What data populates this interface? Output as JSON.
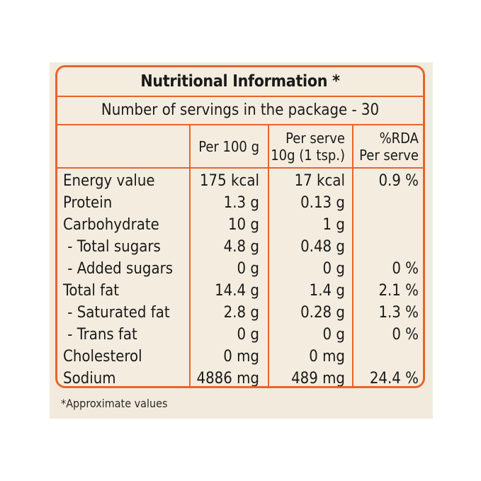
{
  "title": "Nutritional Information *",
  "servings": "Number of servings in the package - 30",
  "headers": {
    "per100": "Per 100 g",
    "perServeLine1": "Per serve",
    "perServeLine2": "10g (1 tsp.)",
    "rdaLine1": "%RDA",
    "rdaLine2": "Per serve"
  },
  "rows": [
    {
      "name": "Energy value",
      "per100": "175 kcal",
      "perServe": "17 kcal",
      "rda": "0.9 %"
    },
    {
      "name": "Protein",
      "per100": "1.3 g",
      "perServe": "0.13 g",
      "rda": ""
    },
    {
      "name": "Carbohydrate",
      "per100": "10 g",
      "perServe": "1 g",
      "rda": ""
    },
    {
      "name": " - Total sugars",
      "per100": "4.8 g",
      "perServe": "0.48 g",
      "rda": ""
    },
    {
      "name": " - Added sugars",
      "per100": "0 g",
      "perServe": "0 g",
      "rda": "0 %"
    },
    {
      "name": "Total fat",
      "per100": "14.4 g",
      "perServe": "1.4 g",
      "rda": "2.1 %"
    },
    {
      "name": " - Saturated fat",
      "per100": "2.8 g",
      "perServe": "0.28 g",
      "rda": "1.3 %"
    },
    {
      "name": " - Trans fat",
      "per100": "0 g",
      "perServe": "0 g",
      "rda": "0 %"
    },
    {
      "name": "Cholesterol",
      "per100": "0 mg",
      "perServe": "0 mg",
      "rda": ""
    },
    {
      "name": "Sodium",
      "per100": "4886 mg",
      "perServe": "489 mg",
      "rda": "24.4 %"
    }
  ],
  "footnote": "*Approximate values",
  "colors": {
    "border": "#e8642c",
    "background": "#f2ebdd"
  }
}
